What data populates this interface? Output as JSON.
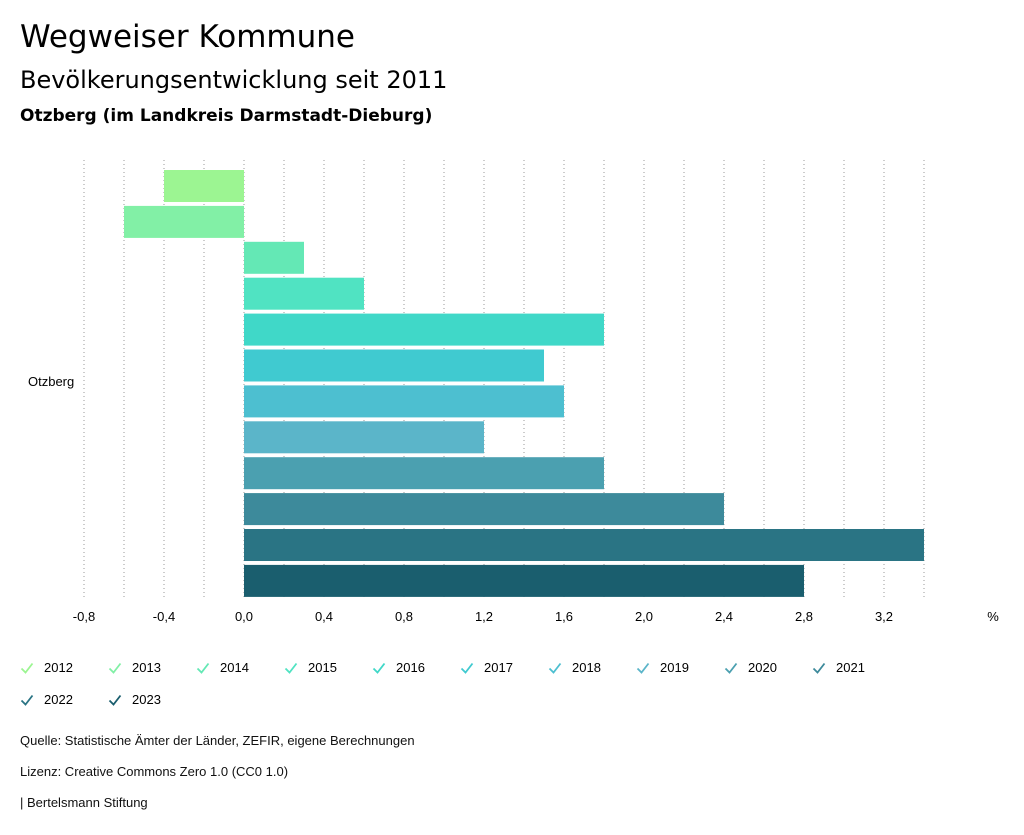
{
  "title": "Wegweiser Kommune",
  "subtitle": "Bevölkerungsentwicklung seit 2011",
  "location": "Otzberg (im Landkreis Darmstadt-Dieburg)",
  "chart_data": {
    "type": "bar",
    "orientation": "horizontal",
    "category": "Otzberg",
    "unit_label": "%",
    "xlim": [
      -0.8,
      3.4
    ],
    "ticks": [
      "-0,8",
      "-0,4",
      "0,0",
      "0,4",
      "0,8",
      "1,2",
      "1,6",
      "2,0",
      "2,4",
      "2,8",
      "3,2"
    ],
    "tick_values": [
      -0.8,
      -0.4,
      0.0,
      0.4,
      0.8,
      1.2,
      1.6,
      2.0,
      2.4,
      2.8,
      3.2
    ],
    "gridlines": "dotted vertical every 0.2",
    "series": [
      {
        "name": "2012",
        "value": -0.4,
        "color": "#9cf592"
      },
      {
        "name": "2013",
        "value": -0.6,
        "color": "#82f0a6"
      },
      {
        "name": "2014",
        "value": 0.3,
        "color": "#64e8b5"
      },
      {
        "name": "2015",
        "value": 0.6,
        "color": "#50e3c2"
      },
      {
        "name": "2016",
        "value": 1.8,
        "color": "#40d8c8"
      },
      {
        "name": "2017",
        "value": 1.5,
        "color": "#40cad0"
      },
      {
        "name": "2018",
        "value": 1.6,
        "color": "#4dbfd0"
      },
      {
        "name": "2019",
        "value": 1.2,
        "color": "#5bb5c9"
      },
      {
        "name": "2020",
        "value": 1.8,
        "color": "#4ba0b0"
      },
      {
        "name": "2021",
        "value": 2.4,
        "color": "#3d8a9b"
      },
      {
        "name": "2022",
        "value": 3.4,
        "color": "#2a7484"
      },
      {
        "name": "2023",
        "value": 2.8,
        "color": "#1a5e6e"
      }
    ]
  },
  "footer": {
    "source": "Quelle: Statistische Ämter der Länder, ZEFIR, eigene Berechnungen",
    "license": "Lizenz: Creative Commons Zero 1.0 (CC0 1.0)",
    "publisher": "| Bertelsmann Stiftung"
  }
}
